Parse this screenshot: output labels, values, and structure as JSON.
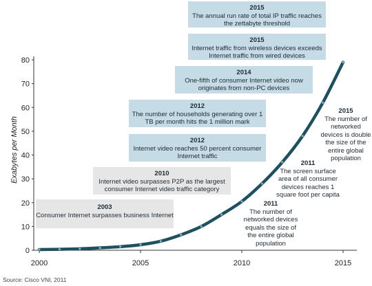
{
  "chart_data": {
    "type": "line",
    "title": "",
    "xlabel": "",
    "ylabel": "Exabytes per Month",
    "xlim": [
      2000,
      2015
    ],
    "ylim": [
      0,
      80
    ],
    "xticks": [
      "2000",
      "2005",
      "2010",
      "2015"
    ],
    "yticks": [
      "0",
      "10",
      "20",
      "30",
      "40",
      "50",
      "60",
      "70",
      "80"
    ],
    "grid": false,
    "series": [
      {
        "x": [
          2000,
          2001,
          2002,
          2003,
          2004,
          2005,
          2006,
          2007,
          2008,
          2009,
          2010,
          2011,
          2012,
          2013,
          2014,
          2015
        ],
        "values": [
          0.3,
          0.4,
          0.6,
          1.0,
          1.5,
          2.3,
          3.8,
          6.5,
          10,
          15,
          20.5,
          28,
          37,
          48,
          62,
          79
        ]
      }
    ],
    "line_color": "#1e5060",
    "marker_color": "#8ab0bc"
  },
  "annotations": [
    {
      "year": "2015",
      "text": "The annual run rate of total IP traffic reaches the zettabyte threshold",
      "style": "blue"
    },
    {
      "year": "2015",
      "text": "Internet traffic from wireless devices exceeds Internet traffic from wired devices",
      "style": "blue"
    },
    {
      "year": "2014",
      "text": "One-fifth of consumer Internet video now originates from non-PC devices",
      "style": "blue"
    },
    {
      "year": "2012",
      "text": "The number of households generating over 1 TB per month hits the 1 million mark",
      "style": "blue"
    },
    {
      "year": "2012",
      "text": "Internet video reaches 50 percent consumer Internet traffic",
      "style": "blue"
    },
    {
      "year": "2010",
      "text": "Internet video surpasses P2P as the largest consumer Internet video traffic category",
      "style": "gray"
    },
    {
      "year": "2003",
      "text": "Consumer Internet surpasses business Internet",
      "style": "gray"
    },
    {
      "year": "2015",
      "text": "The number of networked devices is double the size of the entire global population",
      "style": "plain"
    },
    {
      "year": "2011",
      "text": "The screen surface area of all consumer devices reaches 1 square foot per capita",
      "style": "plain"
    },
    {
      "year": "2011",
      "text": "The number of networked devices equals the size of the entire global population",
      "style": "plain"
    }
  ],
  "source": "Source: Cisco VNI, 2011"
}
